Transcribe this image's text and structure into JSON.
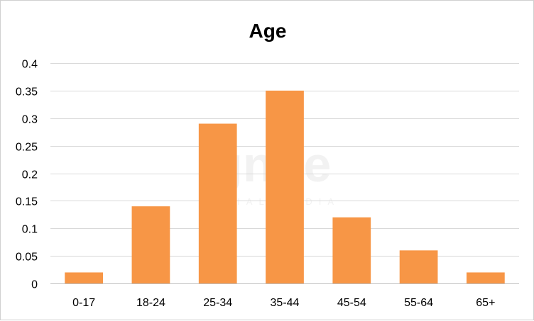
{
  "chart_data": {
    "type": "bar",
    "title": "Age",
    "xlabel": "",
    "ylabel": "",
    "categories": [
      "0-17",
      "18-24",
      "25-34",
      "35-44",
      "45-54",
      "55-64",
      "65+"
    ],
    "values": [
      0.02,
      0.14,
      0.29,
      0.35,
      0.12,
      0.06,
      0.02
    ],
    "ylim": [
      0,
      0.4
    ],
    "yticks": [
      0,
      0.05,
      0.1,
      0.15,
      0.2,
      0.25,
      0.3,
      0.35,
      0.4
    ],
    "ytick_labels": [
      "0",
      "0.05",
      "0.1",
      "0.15",
      "0.2",
      "0.25",
      "0.3",
      "0.35",
      "0.4"
    ],
    "grid": true,
    "legend": "none",
    "bar_color": "#F79646"
  },
  "watermark": {
    "logo_text": "ignite",
    "sub_text": "SOCIAL MEDIA"
  }
}
